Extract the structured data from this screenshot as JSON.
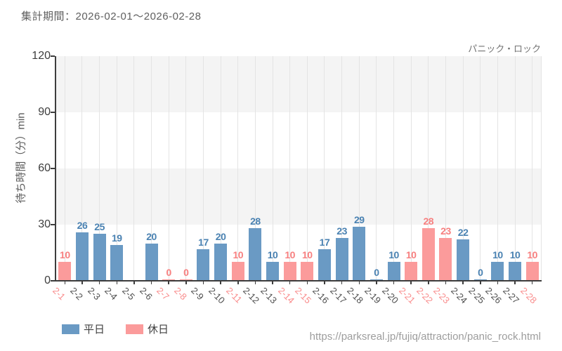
{
  "page": {
    "period_label": "集計期間：2026-02-01～2026-02-28",
    "source_url": "https://parksreal.jp/fujiq/attraction/panic_rock.html"
  },
  "colors": {
    "weekday_bar": "#6a9ac4",
    "holiday_bar": "#fb9b9b",
    "weekday_value_label": "#4a82b2",
    "holiday_value_label": "#f77f7f",
    "weekday_tick_label": "#4d4d4d",
    "holiday_tick_label": "#f98b8b",
    "axis": "#3d3d3d",
    "grid_line": "#e4e4e4",
    "band_gray": "#f4f4f4"
  },
  "chart_data": {
    "type": "bar",
    "title": "パニック・ロック",
    "xlabel": "",
    "ylabel": "待ち時間（分）min",
    "ylim": [
      0,
      120
    ],
    "yticks": [
      0,
      30,
      60,
      90,
      120
    ],
    "grid": true,
    "legend_position": "bottom-left",
    "legend": [
      {
        "label": "平日",
        "series": "weekday"
      },
      {
        "label": "休日",
        "series": "holiday"
      }
    ],
    "categories": [
      "2-1",
      "2-2",
      "2-3",
      "2-4",
      "2-5",
      "2-6",
      "2-7",
      "2-8",
      "2-9",
      "2-10",
      "2-11",
      "2-12",
      "2-13",
      "2-14",
      "2-15",
      "2-16",
      "2-17",
      "2-18",
      "2-19",
      "2-20",
      "2-21",
      "2-22",
      "2-23",
      "2-24",
      "2-25",
      "2-26",
      "2-27",
      "2-28"
    ],
    "values": [
      10,
      26,
      25,
      19,
      null,
      20,
      0,
      0,
      17,
      20,
      10,
      28,
      10,
      10,
      10,
      17,
      23,
      29,
      0,
      10,
      10,
      28,
      23,
      22,
      0,
      10,
      10,
      10
    ],
    "day_types": [
      "holiday",
      "weekday",
      "weekday",
      "weekday",
      "weekday",
      "weekday",
      "holiday",
      "holiday",
      "weekday",
      "weekday",
      "holiday",
      "weekday",
      "weekday",
      "holiday",
      "holiday",
      "weekday",
      "weekday",
      "weekday",
      "weekday",
      "weekday",
      "holiday",
      "holiday",
      "holiday",
      "weekday",
      "weekday",
      "weekday",
      "weekday",
      "holiday"
    ]
  }
}
